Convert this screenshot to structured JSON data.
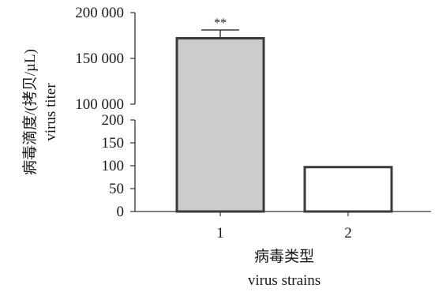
{
  "chart_data": {
    "type": "bar",
    "broken_axis": true,
    "categories": [
      "1",
      "2"
    ],
    "values": [
      172000,
      97
    ],
    "errors": [
      9000,
      0
    ],
    "bar_fill_colors": [
      "#cccccc",
      "#ffffff"
    ],
    "bar_stroke_color": "#3a3a3a",
    "significance": [
      "**",
      ""
    ],
    "ylabel_lines": [
      "病毒滴度/(拷贝/µL)",
      "virus titer"
    ],
    "xlabel_lines": [
      "病毒类型",
      "virus strains"
    ],
    "y_segments": [
      {
        "range": [
          0,
          200
        ],
        "ticks": [
          0,
          50,
          100,
          150,
          200
        ],
        "tick_labels": [
          "0",
          "50",
          "100",
          "150",
          "200"
        ]
      },
      {
        "range": [
          100000,
          200000
        ],
        "ticks": [
          100000,
          150000,
          200000
        ],
        "tick_labels": [
          "100 000",
          "150 000",
          "200 000"
        ]
      }
    ],
    "grid": false
  }
}
